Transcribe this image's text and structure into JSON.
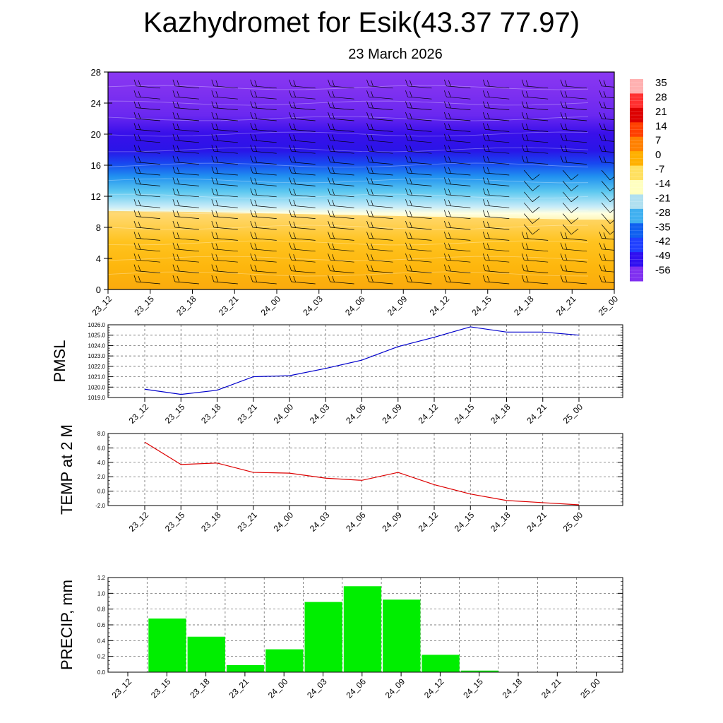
{
  "header": {
    "title": "Kazhydromet for Esik(43.37 77.97)",
    "date": "23 March 2026"
  },
  "time_labels": [
    "23_12",
    "23_15",
    "23_18",
    "23_21",
    "24_00",
    "24_03",
    "24_06",
    "24_09",
    "24_12",
    "24_15",
    "24_18",
    "24_21",
    "25_00"
  ],
  "colors": {
    "pmsl_line": "#0000cc",
    "temp_line": "#dd0000",
    "precip_bar": "#00ee00"
  },
  "chart_data": [
    {
      "type": "heatmap",
      "name": "vertical temperature cross-section",
      "x": [
        "23_12",
        "23_15",
        "23_18",
        "23_21",
        "24_00",
        "24_03",
        "24_06",
        "24_09",
        "24_12",
        "24_15",
        "24_18",
        "24_21",
        "25_00"
      ],
      "ylim": [
        0,
        28
      ],
      "yticks": [
        0,
        4,
        8,
        12,
        16,
        20,
        24,
        28
      ],
      "colorbar": {
        "labels": [
          "35",
          "28",
          "21",
          "14",
          "7",
          "0",
          "-7",
          "-14",
          "-21",
          "-28",
          "-35",
          "-42",
          "-49",
          "-56"
        ],
        "colors": [
          "#ffb0b0",
          "#ff3030",
          "#dd0000",
          "#ff4000",
          "#ff8000",
          "#ffb000",
          "#ffe060",
          "#ffffc0",
          "#b0e0f0",
          "#40b0f0",
          "#1060f0",
          "#2040ff",
          "#3010f0",
          "#8030f0"
        ]
      },
      "freezing_level_height": [
        10.1,
        10.0,
        9.9,
        9.8,
        9.7,
        9.6,
        9.5,
        9.4,
        9.3,
        9.2,
        9.1,
        9.0,
        9.0
      ],
      "annotations": "wind barbs at each time and level"
    },
    {
      "type": "line",
      "ylabel": "PMSL",
      "categories": [
        "23_12",
        "23_15",
        "23_18",
        "23_21",
        "24_00",
        "24_03",
        "24_06",
        "24_09",
        "24_12",
        "24_15",
        "24_18",
        "24_21",
        "25_00"
      ],
      "values": [
        1019.8,
        1019.3,
        1019.7,
        1021.0,
        1021.1,
        1021.8,
        1022.6,
        1023.9,
        1024.8,
        1025.8,
        1025.3,
        1025.3,
        1025.0
      ],
      "ylim": [
        1019.0,
        1026.0
      ],
      "yticks": [
        "1019.0",
        "1020.0",
        "1021.0",
        "1022.0",
        "1023.0",
        "1024.0",
        "1025.0",
        "1026.0"
      ],
      "grid": true
    },
    {
      "type": "line",
      "ylabel": "TEMP at 2 M",
      "categories": [
        "23_12",
        "23_15",
        "23_18",
        "23_21",
        "24_00",
        "24_03",
        "24_06",
        "24_09",
        "24_12",
        "24_15",
        "24_18",
        "24_21",
        "25_00"
      ],
      "values": [
        6.8,
        3.7,
        3.9,
        2.6,
        2.5,
        1.8,
        1.5,
        2.6,
        0.9,
        -0.4,
        -1.3,
        -1.6,
        -1.9
      ],
      "ylim": [
        -2.0,
        8.0
      ],
      "yticks": [
        "-2.0",
        "0.0",
        "2.0",
        "4.0",
        "6.0",
        "8.0"
      ],
      "grid": true
    },
    {
      "type": "bar",
      "ylabel": "PRECIP, mm",
      "categories": [
        "23_12",
        "23_15",
        "23_18",
        "23_21",
        "24_00",
        "24_03",
        "24_06",
        "24_09",
        "24_12",
        "24_15",
        "24_18",
        "24_21",
        "25_00"
      ],
      "values": [
        0,
        0.68,
        0.45,
        0.09,
        0.29,
        0.89,
        1.09,
        0.92,
        0.22,
        0.02,
        0,
        0,
        0
      ],
      "ylim": [
        0,
        1.2
      ],
      "yticks": [
        "0.0",
        "0.2",
        "0.4",
        "0.6",
        "0.8",
        "1.0",
        "1.2"
      ],
      "grid": true
    }
  ]
}
